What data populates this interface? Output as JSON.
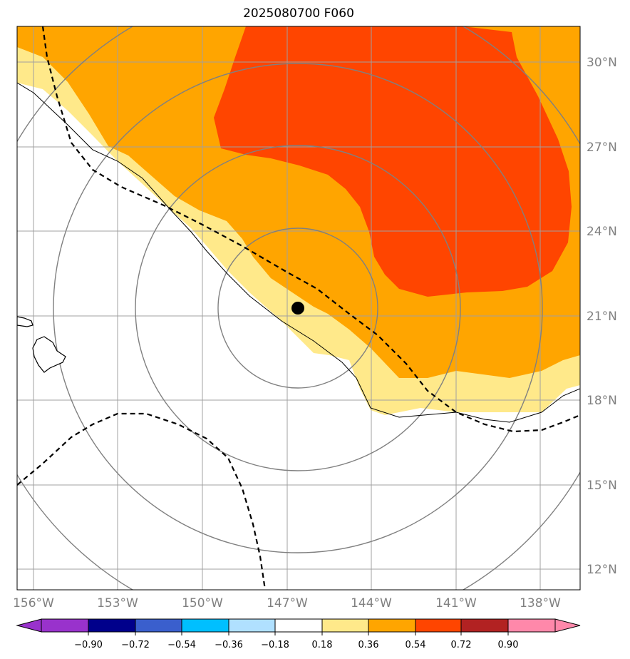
{
  "title": "2025080700 F060",
  "map": {
    "lat_labels": [
      "30°N",
      "27°N",
      "24°N",
      "21°N",
      "18°N",
      "15°N",
      "12°N"
    ],
    "lon_labels": [
      "156°W",
      "153°W",
      "150°W",
      "147°W",
      "144°W",
      "141°W",
      "138°W"
    ],
    "storm_center": {
      "lon": -146.6,
      "lat": 21.3
    },
    "colors": {
      "band_0_18_0_36": "#ffe98a",
      "band_0_36_0_54": "#ffa500",
      "band_0_54_0_72": "#ff4500",
      "gridline": "#a0a0a0",
      "range_ring": "#808080"
    }
  },
  "colorbar": {
    "tick_labels": [
      "−0.90",
      "−0.72",
      "−0.54",
      "−0.36",
      "−0.18",
      "0.18",
      "0.36",
      "0.54",
      "0.72",
      "0.90"
    ],
    "colors": [
      "#9932cc",
      "#00008b",
      "#3a5fcd",
      "#00bfff",
      "#b0e0ff",
      "#ffffff",
      "#ffe98a",
      "#ffa500",
      "#ff4500",
      "#b22222",
      "#ff88aa"
    ]
  }
}
